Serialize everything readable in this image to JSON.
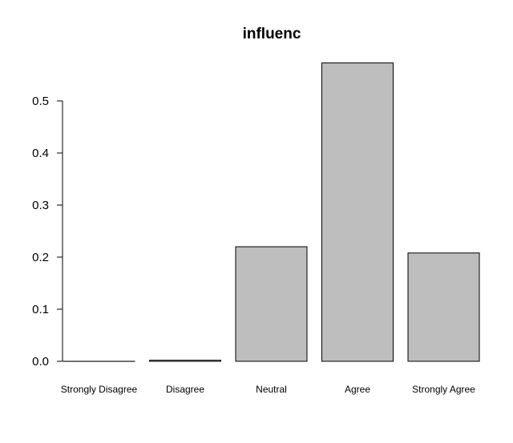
{
  "chart_data": {
    "type": "bar",
    "title": "influenc",
    "xlabel": "",
    "ylabel": "",
    "categories": [
      "Strongly Disagree",
      "Disagree",
      "Neutral",
      "Agree",
      "Strongly Agree"
    ],
    "values": [
      0.0,
      0.002,
      0.22,
      0.573,
      0.208
    ],
    "ylim": [
      0,
      0.57
    ],
    "yticks": [
      "0.0",
      "0.1",
      "0.2",
      "0.3",
      "0.4",
      "0.5"
    ],
    "grid": false,
    "legend": "none",
    "bar_color": "#bebebe",
    "edge_color": "#000000"
  }
}
